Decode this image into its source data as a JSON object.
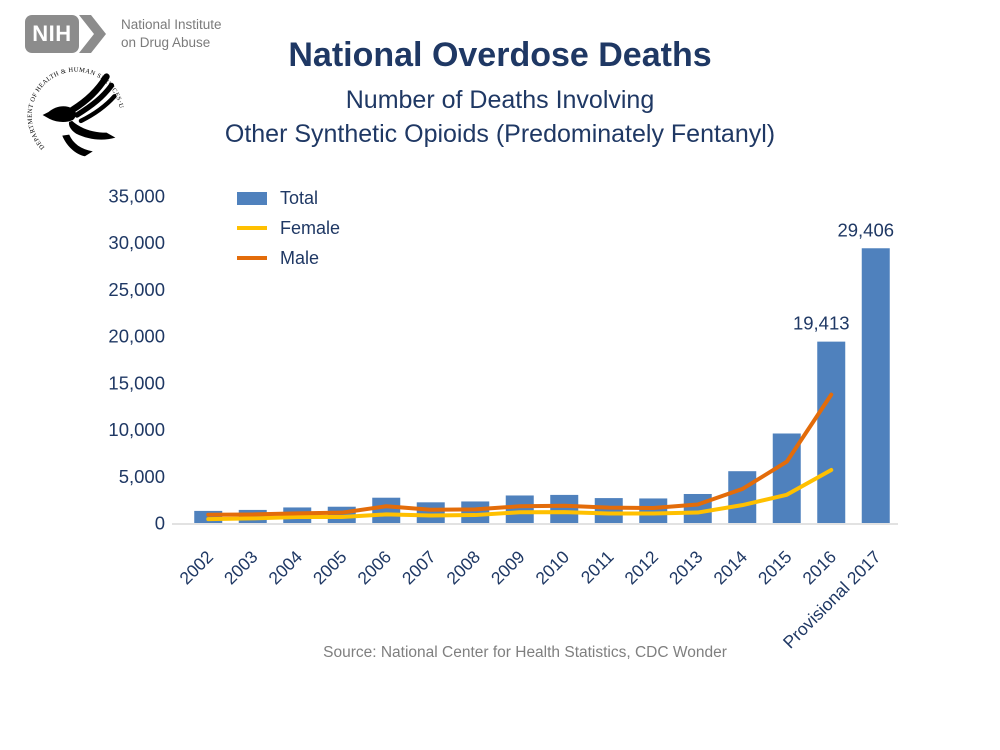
{
  "branding": {
    "nih_acronym": "NIH",
    "institute_line1": "National Institute",
    "institute_line2": "on Drug Abuse",
    "hhs_seal_text": "DEPARTMENT OF HEALTH & HUMAN SERVICES·USA"
  },
  "title": "National Overdose Deaths",
  "subtitle_line1": "Number of Deaths Involving",
  "subtitle_line2": "Other Synthetic Opioids (Predominately Fentanyl)",
  "source": "Source: National Center for Health Statistics, CDC Wonder",
  "colors": {
    "navy_text": "#1F3864",
    "bar_blue": "#4F81BD",
    "female_yellow": "#FFC000",
    "male_orange": "#E36C0A",
    "axis_gray": "#D9D9D9",
    "logo_gray": "#8C8C8C",
    "source_gray": "#7F7F7F"
  },
  "legend": [
    {
      "label": "Total",
      "type": "bar",
      "color": "#4F81BD"
    },
    {
      "label": "Female",
      "type": "line",
      "color": "#FFC000"
    },
    {
      "label": "Male",
      "type": "line",
      "color": "#E36C0A"
    }
  ],
  "chart_data": {
    "type": "bar",
    "title": "National Overdose Deaths — Number of Deaths Involving Other Synthetic Opioids (Predominately Fentanyl)",
    "categories": [
      "2002",
      "2003",
      "2004",
      "2005",
      "2006",
      "2007",
      "2008",
      "2009",
      "2010",
      "2011",
      "2012",
      "2013",
      "2014",
      "2015",
      "2016",
      "Provisional 2017"
    ],
    "series": [
      {
        "name": "Total",
        "type": "bar",
        "color": "#4F81BD",
        "values": [
          1295,
          1400,
          1664,
          1742,
          2707,
          2213,
          2306,
          2946,
          3007,
          2666,
          2628,
          3105,
          5544,
          9580,
          19413,
          29406
        ]
      },
      {
        "name": "Female",
        "type": "line",
        "color": "#FFC000",
        "values": [
          420,
          490,
          640,
          640,
          920,
          800,
          850,
          1150,
          1160,
          1020,
          1020,
          1120,
          1910,
          3020,
          5675
        ]
      },
      {
        "name": "Male",
        "type": "line",
        "color": "#E36C0A",
        "values": [
          880,
          915,
          1025,
          1105,
          1790,
          1415,
          1455,
          1790,
          1850,
          1650,
          1605,
          1985,
          3635,
          6560,
          13738
        ]
      }
    ],
    "ylim": [
      0,
      35000
    ],
    "yticks": [
      {
        "value": 0,
        "label": "0"
      },
      {
        "value": 5000,
        "label": "5,000"
      },
      {
        "value": 10000,
        "label": "10,000"
      },
      {
        "value": 15000,
        "label": "15,000"
      },
      {
        "value": 20000,
        "label": "20,000"
      },
      {
        "value": 25000,
        "label": "25,000"
      },
      {
        "value": 30000,
        "label": "30,000"
      },
      {
        "value": 35000,
        "label": "35,000"
      }
    ],
    "grid": false,
    "legend_position": "top-left-inside",
    "annotations": [
      {
        "category_index": 14,
        "label": "19,413"
      },
      {
        "category_index": 15,
        "label": "29,406"
      }
    ]
  }
}
